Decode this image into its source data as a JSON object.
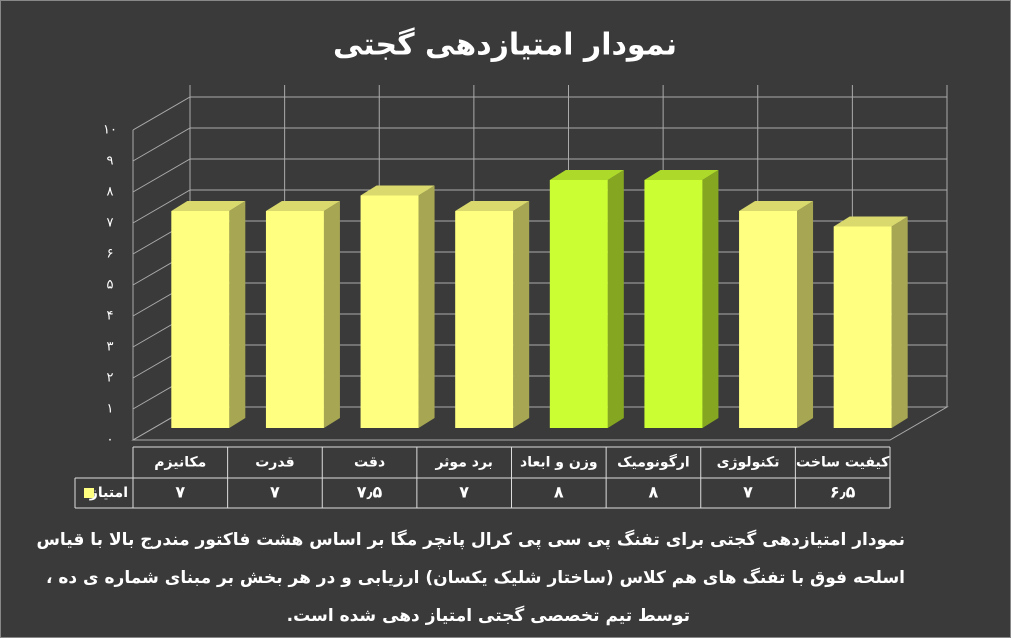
{
  "chart_data": {
    "type": "bar3d",
    "title": "نمودار امتیازدهی گجتی",
    "categories": [
      "مکانیزم",
      "قدرت",
      "دقت",
      "برد موثر",
      "وزن و ابعاد",
      "ارگونومیک",
      "تکنولوژی",
      "کیفیت ساخت"
    ],
    "series": [
      {
        "name": "امتیاز",
        "color": "#ffff80",
        "point_colors": [
          "#ffff80",
          "#ffff80",
          "#ffff80",
          "#ffff80",
          "#ccff33",
          "#ccff33",
          "#ffff80",
          "#ffff80"
        ],
        "values": [
          7,
          7,
          7.5,
          7,
          8,
          8,
          7,
          6.5
        ],
        "value_labels": [
          "۷",
          "۷",
          "۷٫۵",
          "۷",
          "۸",
          "۸",
          "۷",
          "۶٫۵"
        ]
      }
    ],
    "ylim": [
      0,
      10
    ],
    "yticks": [
      {
        "value": 0,
        "label": "۰"
      },
      {
        "value": 1,
        "label": "۱"
      },
      {
        "value": 2,
        "label": "۲"
      },
      {
        "value": 3,
        "label": "۳"
      },
      {
        "value": 4,
        "label": "۴"
      },
      {
        "value": 5,
        "label": "۵"
      },
      {
        "value": 6,
        "label": "۶"
      },
      {
        "value": 7,
        "label": "۷"
      },
      {
        "value": 8,
        "label": "۸"
      },
      {
        "value": 9,
        "label": "۹"
      },
      {
        "value": 10,
        "label": "۱۰"
      }
    ],
    "grid": true,
    "caption": [
      "نمودار امتیازدهی گجتی برای تفنگ پی سی پی کرال پانچر مگا بر اساس هشت فاکتور مندرج بالا با قیاس",
      "اسلحه فوق با تفنگ های هم کلاس (ساختار شلیک یکسان) ارزیابی و در هر بخش بر مبنای شماره ی ده ،",
      "توسط تیم تخصصی گجتی امتیاز دهی شده است."
    ]
  }
}
